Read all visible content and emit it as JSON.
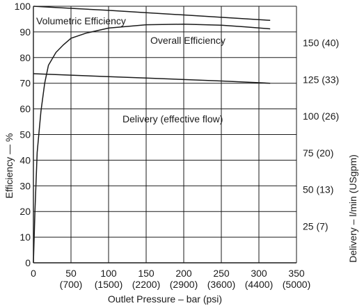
{
  "chart_data": {
    "type": "line",
    "x_axis": {
      "label": "Outlet Pressure – bar (psi)",
      "range": [
        0,
        350
      ],
      "ticks": [
        {
          "value": 0,
          "label": "0",
          "sub": ""
        },
        {
          "value": 50,
          "label": "50",
          "sub": "(700)"
        },
        {
          "value": 100,
          "label": "100",
          "sub": "(1500)"
        },
        {
          "value": 150,
          "label": "150",
          "sub": "(2200)"
        },
        {
          "value": 200,
          "label": "200",
          "sub": "(2900)"
        },
        {
          "value": 250,
          "label": "250",
          "sub": "(3600)"
        },
        {
          "value": 300,
          "label": "300",
          "sub": "(4400)"
        },
        {
          "value": 350,
          "label": "350",
          "sub": "(5000)"
        }
      ]
    },
    "y_axis": {
      "label": "Efficiency — %",
      "range": [
        0,
        100
      ],
      "ticks": [
        0,
        10,
        20,
        30,
        40,
        50,
        60,
        70,
        80,
        90,
        100
      ]
    },
    "y2_axis": {
      "label": "Delivery – l/min (USgpm)",
      "range": [
        0,
        175
      ],
      "ticks": [
        {
          "value": 25,
          "label": "25 (7)"
        },
        {
          "value": 50,
          "label": "50 (13)"
        },
        {
          "value": 75,
          "label": "75 (20)"
        },
        {
          "value": 100,
          "label": "100 (26)"
        },
        {
          "value": 125,
          "label": "125 (33)"
        },
        {
          "value": 150,
          "label": "150 (40)"
        }
      ]
    },
    "grid": true,
    "series": [
      {
        "name": "Volumetric Efficiency",
        "axis": "left",
        "points": [
          [
            0,
            100
          ],
          [
            50,
            99.2
          ],
          [
            100,
            98.4
          ],
          [
            150,
            97.5
          ],
          [
            200,
            96.6
          ],
          [
            250,
            95.7
          ],
          [
            315,
            94.5
          ]
        ]
      },
      {
        "name": "Overall Efficiency",
        "axis": "left",
        "points": [
          [
            0,
            0
          ],
          [
            2,
            20
          ],
          [
            5,
            43
          ],
          [
            10,
            59
          ],
          [
            15,
            70
          ],
          [
            20,
            77
          ],
          [
            30,
            82
          ],
          [
            40,
            85
          ],
          [
            50,
            87.5
          ],
          [
            70,
            89.5
          ],
          [
            100,
            91.5
          ],
          [
            150,
            92.8
          ],
          [
            200,
            93
          ],
          [
            250,
            92.6
          ],
          [
            280,
            92
          ],
          [
            315,
            91.2
          ]
        ]
      },
      {
        "name": "Delivery (effective flow)",
        "axis": "right",
        "points": [
          [
            0,
            129
          ],
          [
            50,
            128
          ],
          [
            100,
            127
          ],
          [
            150,
            126
          ],
          [
            200,
            125
          ],
          [
            250,
            124
          ],
          [
            315,
            122.5
          ]
        ]
      }
    ]
  }
}
